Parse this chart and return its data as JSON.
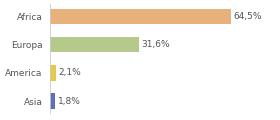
{
  "categories": [
    "Asia",
    "America",
    "Europa",
    "Africa"
  ],
  "values": [
    1.8,
    2.1,
    31.6,
    64.5
  ],
  "labels": [
    "1,8%",
    "2,1%",
    "31,6%",
    "64,5%"
  ],
  "bar_colors": [
    "#6070b8",
    "#e8c84a",
    "#b5c98a",
    "#e8b07a"
  ],
  "background_color": "#ffffff",
  "xlim": [
    0,
    80
  ],
  "label_fontsize": 6.5,
  "tick_fontsize": 6.5,
  "bar_height": 0.55,
  "figsize": [
    2.8,
    1.2
  ],
  "dpi": 100
}
